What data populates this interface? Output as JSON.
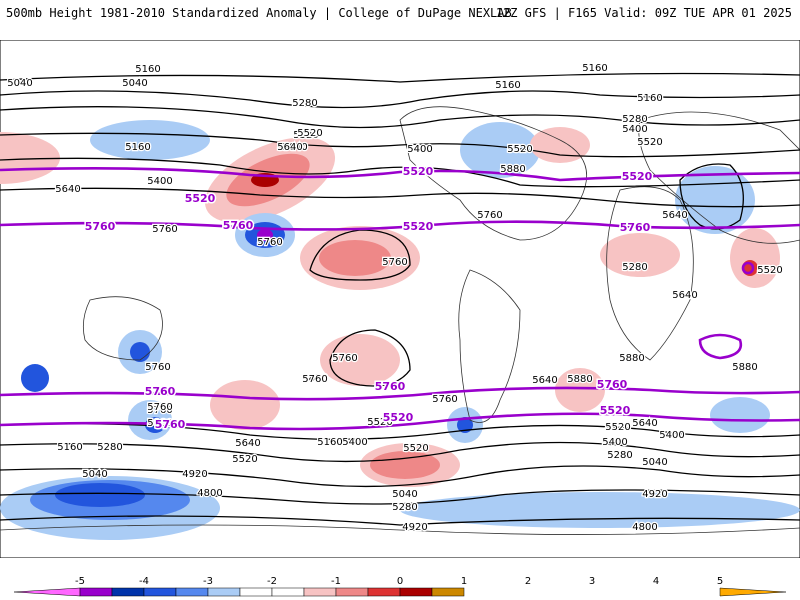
{
  "header": {
    "title": "500mb Height 1981-2010 Standardized Anomaly | College of DuPage NEXLAB",
    "run_info": "12Z GFS | F165 Valid: 09Z TUE APR 01 2025"
  },
  "contour_labels": [
    "5160",
    "5040",
    "5040",
    "5160",
    "5280",
    "5520",
    "5640",
    "5400",
    "5640",
    "5160",
    "5400",
    "5520",
    "5520",
    "5640",
    "5760",
    "5760",
    "5760",
    "5160",
    "5160",
    "5280",
    "5400",
    "5520",
    "5640",
    "5520",
    "5760",
    "5880",
    "5280",
    "5640",
    "5760",
    "5880",
    "5880",
    "5880",
    "5880",
    "5760",
    "5760",
    "5640",
    "5760",
    "5760",
    "5880",
    "5520",
    "5640",
    "5520",
    "5400",
    "5280",
    "5160",
    "5040",
    "5040",
    "4920",
    "4800",
    "5640",
    "5400",
    "5520",
    "5400",
    "5280",
    "5040",
    "4920",
    "4800",
    "4920",
    "5280",
    "5760",
    "5520",
    "5160"
  ],
  "highlight_labels": [
    "5520",
    "5520",
    "5760",
    "5760",
    "5520",
    "5760",
    "5760",
    "5760",
    "5760",
    "5760",
    "5520",
    "5520",
    "5520"
  ],
  "colorbar": {
    "ticks": [
      "-5",
      "-4",
      "-3",
      "-2",
      "-1",
      "0",
      "1",
      "2",
      "3",
      "4",
      "5"
    ],
    "colors": [
      "#ff66ff",
      "#9900cc",
      "#0033aa",
      "#2255dd",
      "#5588ee",
      "#aaccf5",
      "#ffffff",
      "#ffffff",
      "#f7c3c3",
      "#ee8888",
      "#dd3333",
      "#aa0000",
      "#cc8800",
      "#ffaa00"
    ]
  }
}
